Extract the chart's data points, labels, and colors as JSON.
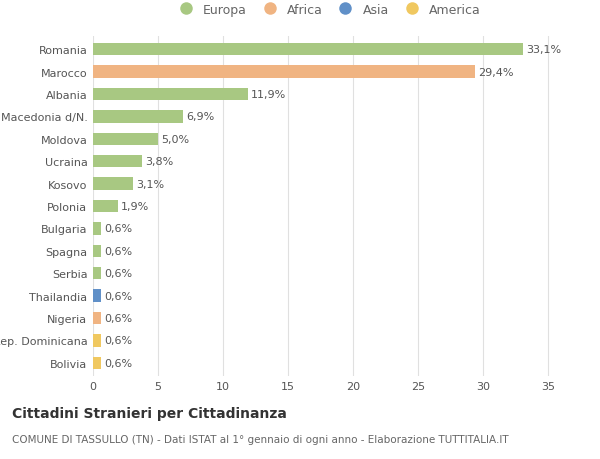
{
  "countries": [
    "Romania",
    "Marocco",
    "Albania",
    "Macedonia d/N.",
    "Moldova",
    "Ucraina",
    "Kosovo",
    "Polonia",
    "Bulgaria",
    "Spagna",
    "Serbia",
    "Thailandia",
    "Nigeria",
    "Rep. Dominicana",
    "Bolivia"
  ],
  "values": [
    33.1,
    29.4,
    11.9,
    6.9,
    5.0,
    3.8,
    3.1,
    1.9,
    0.6,
    0.6,
    0.6,
    0.6,
    0.6,
    0.6,
    0.6
  ],
  "labels": [
    "33,1%",
    "29,4%",
    "11,9%",
    "6,9%",
    "5,0%",
    "3,8%",
    "3,1%",
    "1,9%",
    "0,6%",
    "0,6%",
    "0,6%",
    "0,6%",
    "0,6%",
    "0,6%",
    "0,6%"
  ],
  "continents": [
    "Europa",
    "Africa",
    "Europa",
    "Europa",
    "Europa",
    "Europa",
    "Europa",
    "Europa",
    "Europa",
    "Europa",
    "Europa",
    "Asia",
    "Africa",
    "America",
    "America"
  ],
  "colors": {
    "Europa": "#a8c882",
    "Africa": "#f0b482",
    "Asia": "#6090c8",
    "America": "#f0c860"
  },
  "title": "Cittadini Stranieri per Cittadinanza",
  "subtitle": "COMUNE DI TASSULLO (TN) - Dati ISTAT al 1° gennaio di ogni anno - Elaborazione TUTTITALIA.IT",
  "xlim": [
    0,
    36
  ],
  "xticks": [
    0,
    5,
    10,
    15,
    20,
    25,
    30,
    35
  ],
  "background_color": "#ffffff",
  "grid_color": "#e0e0e0",
  "bar_height": 0.55,
  "title_fontsize": 10,
  "subtitle_fontsize": 7.5,
  "tick_fontsize": 8,
  "label_fontsize": 8,
  "legend_fontsize": 9
}
